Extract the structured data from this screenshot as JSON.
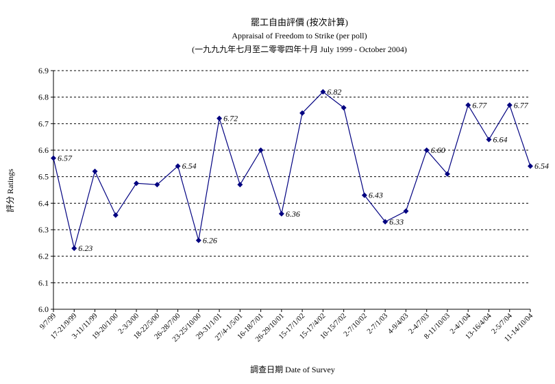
{
  "chart_data": {
    "type": "line",
    "title": "罷工自由評價 (按次計算)",
    "subtitle": "Appraisal of Freedom to Strike (per poll)",
    "subtitle2": "(一九九九年七月至二零零四年十月 July 1999 - October 2004)",
    "xlabel": "調查日期 Date of Survey",
    "ylabel": "評分 Ratings",
    "ylim": [
      6.0,
      6.9
    ],
    "yticks": [
      "6.0",
      "6.1",
      "6.2",
      "6.3",
      "6.4",
      "6.5",
      "6.6",
      "6.7",
      "6.8",
      "6.9"
    ],
    "grid": true,
    "color": "#000080",
    "categories": [
      "9/7/99",
      "17-21/9/99",
      "3-11/11/99",
      "19-20/1/00",
      "2-3/3/00",
      "18-22/5/00",
      "26-28/7/00",
      "23-25/10/00",
      "29-31/1/01",
      "27/4-1/5/01",
      "16-18/7/01",
      "26-29/10/01",
      "15-17/1/02",
      "15-17/4/02",
      "10-15/7/02",
      "2-7/10/02",
      "2-7/1/03",
      "4-9/4/03",
      "2-4/7/03",
      "8-11/10/03",
      "2-4/1/04",
      "13-16/4/04",
      "2-5/7/04",
      "11-14/10/04"
    ],
    "values": [
      6.57,
      6.23,
      6.52,
      6.355,
      6.475,
      6.47,
      6.54,
      6.26,
      6.72,
      6.47,
      6.6,
      6.36,
      6.74,
      6.82,
      6.76,
      6.43,
      6.33,
      6.37,
      6.6,
      6.51,
      6.77,
      6.64,
      6.77,
      6.54
    ],
    "data_labels": [
      "6.57",
      "6.23",
      "",
      "",
      "",
      "",
      "6.54",
      "6.26",
      "6.72",
      "",
      "",
      "6.36",
      "",
      "6.82",
      "",
      "6.43",
      "6.33",
      "",
      "6.60",
      "",
      "6.77",
      "6.64",
      "6.77",
      "6.54"
    ]
  }
}
